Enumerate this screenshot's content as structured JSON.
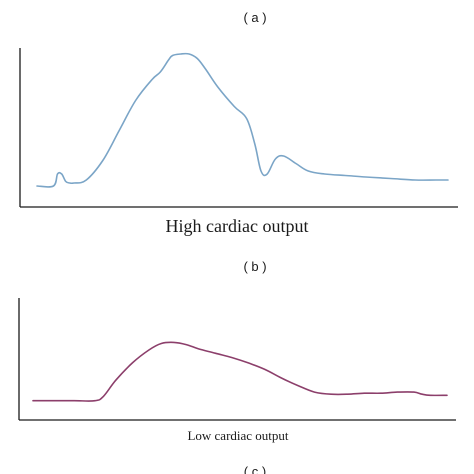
{
  "chart_data": [
    {
      "panel_label": "( a )",
      "type": "line",
      "caption": "High cardiac output",
      "color": "#7ba5c7",
      "axes_shown": "left and bottom lines only, no ticks or tick labels",
      "series": [
        {
          "x": [
            0.0,
            0.04,
            0.05,
            0.06,
            0.07,
            0.08,
            0.09,
            0.12,
            0.16,
            0.2,
            0.24,
            0.28,
            0.3,
            0.32,
            0.33,
            0.35,
            0.37,
            0.39,
            0.41,
            0.44,
            0.48,
            0.51,
            0.53,
            0.545,
            0.56,
            0.58,
            0.6,
            0.63,
            0.66,
            0.7,
            0.75,
            0.8,
            0.86,
            0.92,
            0.97,
            1.0
          ],
          "y": [
            0.1,
            0.1,
            0.18,
            0.18,
            0.13,
            0.12,
            0.12,
            0.14,
            0.27,
            0.47,
            0.67,
            0.81,
            0.86,
            0.94,
            0.97,
            0.98,
            0.98,
            0.95,
            0.88,
            0.76,
            0.63,
            0.55,
            0.38,
            0.2,
            0.18,
            0.28,
            0.3,
            0.25,
            0.2,
            0.18,
            0.17,
            0.16,
            0.15,
            0.14,
            0.14,
            0.14
          ]
        }
      ]
    },
    {
      "panel_label": "( b )",
      "type": "line",
      "caption": "Low cardiac output",
      "color": "#8c3f6b",
      "axes_shown": "left and bottom lines only, no ticks or tick labels",
      "series": [
        {
          "x": [
            0.0,
            0.05,
            0.1,
            0.15,
            0.17,
            0.2,
            0.24,
            0.28,
            0.31,
            0.34,
            0.37,
            0.4,
            0.44,
            0.48,
            0.52,
            0.56,
            0.6,
            0.64,
            0.68,
            0.72,
            0.76,
            0.8,
            0.84,
            0.88,
            0.92,
            0.94,
            0.96,
            1.0
          ],
          "y": [
            0.16,
            0.16,
            0.16,
            0.16,
            0.2,
            0.35,
            0.51,
            0.63,
            0.69,
            0.7,
            0.68,
            0.64,
            0.6,
            0.56,
            0.51,
            0.45,
            0.37,
            0.3,
            0.24,
            0.22,
            0.22,
            0.23,
            0.23,
            0.24,
            0.24,
            0.22,
            0.21,
            0.21
          ]
        }
      ]
    },
    {
      "panel_label": "( c )"
    }
  ]
}
